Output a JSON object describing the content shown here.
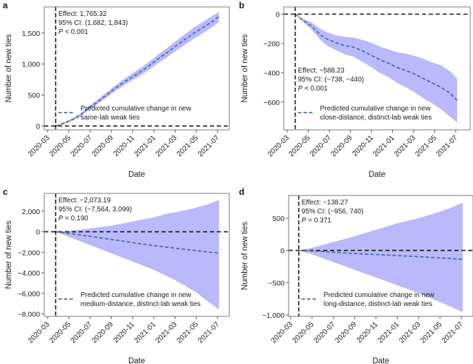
{
  "chart_data": [
    {
      "panel": "a",
      "type": "area",
      "xlabel": "Date",
      "ylabel": "Number of new ties",
      "x_ticks": [
        "2020-03",
        "2020-05",
        "2020-07",
        "2020-09",
        "2020-11",
        "2021-01",
        "2021-03",
        "2021-05",
        "2021-07"
      ],
      "y_ticks": [
        0,
        500,
        1000,
        1500
      ],
      "y_tick_labels": [
        "0",
        "500",
        "1,000",
        "1,500"
      ],
      "ylim": [
        -40,
        1900
      ],
      "intervention_date": "2020-03-24",
      "reference_line": 0,
      "annotation": {
        "effect": "Effect: 1,765.32",
        "ci": "95% CI: (1,682, 1,843)",
        "p_label": "P",
        "p_value": " < 0.001"
      },
      "legend": {
        "line1": "Predicted cumulative change in new",
        "line2": "same-lab weak ties"
      },
      "series": {
        "x": [
          "2020-03-24",
          "2020-04-15",
          "2020-05-10",
          "2020-06-05",
          "2020-06-25",
          "2020-07-20",
          "2020-08-15",
          "2020-09-10",
          "2020-10-05",
          "2020-10-30",
          "2020-11-25",
          "2020-12-20",
          "2021-01-15",
          "2021-02-10",
          "2021-03-05",
          "2021-03-30",
          "2021-04-25",
          "2021-05-20",
          "2021-06-15",
          "2021-07-05"
        ],
        "estimate": [
          0,
          40,
          100,
          180,
          280,
          380,
          490,
          600,
          700,
          790,
          880,
          980,
          1090,
          1190,
          1300,
          1400,
          1500,
          1590,
          1680,
          1765
        ],
        "lower": [
          0,
          25,
          80,
          155,
          250,
          345,
          450,
          555,
          650,
          735,
          820,
          915,
          1020,
          1115,
          1220,
          1315,
          1410,
          1500,
          1590,
          1682
        ],
        "upper": [
          0,
          55,
          120,
          205,
          310,
          415,
          530,
          645,
          750,
          845,
          940,
          1045,
          1160,
          1265,
          1380,
          1485,
          1590,
          1680,
          1770,
          1843
        ]
      }
    },
    {
      "panel": "b",
      "type": "area",
      "xlabel": "Date",
      "ylabel": "Number of new ties",
      "x_ticks": [
        "2020-03",
        "2020-05",
        "2020-07",
        "2020-09",
        "2020-11",
        "2021-01",
        "2021-03",
        "2021-05",
        "2021-07"
      ],
      "y_ticks": [
        -600,
        -400,
        -200,
        0
      ],
      "y_tick_labels": [
        "−600",
        "−400",
        "−200",
        "0"
      ],
      "ylim": [
        -780,
        40
      ],
      "intervention_date": "2020-03-24",
      "reference_line": 0,
      "annotation": {
        "effect": "Effect: −588.23",
        "ci": "95% CI: (−738, −440)",
        "p_label": "P",
        "p_value": " < 0.001"
      },
      "legend": {
        "line1": "Predicted cumulative change in new",
        "line2": "close-distance, distinct-lab weak ties"
      },
      "series": {
        "x": [
          "2020-03-24",
          "2020-04-15",
          "2020-05-10",
          "2020-06-05",
          "2020-06-25",
          "2020-07-20",
          "2020-08-15",
          "2020-09-10",
          "2020-10-05",
          "2020-10-30",
          "2020-11-25",
          "2020-12-20",
          "2021-01-15",
          "2021-02-10",
          "2021-03-05",
          "2021-03-30",
          "2021-04-25",
          "2021-05-20",
          "2021-06-15",
          "2021-07-05"
        ],
        "estimate": [
          0,
          -40,
          -80,
          -140,
          -170,
          -195,
          -215,
          -225,
          -250,
          -280,
          -310,
          -335,
          -365,
          -385,
          -410,
          -440,
          -470,
          -500,
          -540,
          -588
        ],
        "lower": [
          0,
          -50,
          -105,
          -175,
          -215,
          -245,
          -275,
          -290,
          -325,
          -360,
          -400,
          -430,
          -470,
          -500,
          -535,
          -575,
          -610,
          -650,
          -700,
          -738
        ],
        "upper": [
          0,
          -30,
          -55,
          -100,
          -125,
          -145,
          -155,
          -160,
          -175,
          -195,
          -220,
          -240,
          -260,
          -270,
          -285,
          -305,
          -330,
          -350,
          -390,
          -440
        ]
      }
    },
    {
      "panel": "c",
      "type": "area",
      "xlabel": "Date",
      "ylabel": "Number of new ties",
      "x_ticks": [
        "2020-03",
        "2020-05",
        "2020-07",
        "2020-09",
        "2020-11",
        "2021-01",
        "2021-03",
        "2021-05",
        "2021-07"
      ],
      "y_ticks": [
        -8000,
        -6000,
        -4000,
        -2000,
        0,
        2000
      ],
      "y_tick_labels": [
        "−8,000",
        "−6,000",
        "−4,000",
        "−2,000",
        "0",
        "2,000"
      ],
      "ylim": [
        -8100,
        3600
      ],
      "intervention_date": "2020-03-24",
      "reference_line": 0,
      "annotation": {
        "effect": "Effect: −2,073.19",
        "ci": "95% CI: (−7,564, 3,099)",
        "p_label": "P",
        "p_value": " = 0.190"
      },
      "legend": {
        "line1": "Predicted cumulative change in new",
        "line2": "medium-distance, distinct-lab weak ties"
      },
      "series": {
        "x": [
          "2020-03-24",
          "2020-05-01",
          "2020-06-01",
          "2020-07-01",
          "2020-08-01",
          "2020-09-01",
          "2020-10-01",
          "2020-11-01",
          "2020-12-01",
          "2021-01-01",
          "2021-02-01",
          "2021-03-01",
          "2021-04-01",
          "2021-05-01",
          "2021-06-01",
          "2021-07-05"
        ],
        "estimate": [
          0,
          -150,
          -300,
          -450,
          -600,
          -750,
          -900,
          -1050,
          -1200,
          -1350,
          -1480,
          -1600,
          -1720,
          -1840,
          -1960,
          -2073
        ],
        "lower": [
          0,
          -500,
          -900,
          -1300,
          -1700,
          -2100,
          -2500,
          -2900,
          -3300,
          -3700,
          -4200,
          -4700,
          -5300,
          -5900,
          -6700,
          -7564
        ],
        "upper": [
          0,
          80,
          200,
          320,
          450,
          600,
          800,
          1000,
          1200,
          1400,
          1700,
          1900,
          2100,
          2350,
          2650,
          3099
        ]
      }
    },
    {
      "panel": "d",
      "type": "area",
      "xlabel": "Date",
      "ylabel": "Number of new ties",
      "x_ticks": [
        "2020-03",
        "2020-05",
        "2020-07",
        "2020-09",
        "2020-11",
        "2021-01",
        "2021-03",
        "2021-05",
        "2021-07"
      ],
      "y_ticks": [
        -1000,
        -500,
        0,
        500
      ],
      "y_tick_labels": [
        "−1,000",
        "−500",
        "0",
        "500"
      ],
      "ylim": [
        -1000,
        830
      ],
      "intervention_date": "2020-03-24",
      "reference_line": 0,
      "annotation": {
        "effect": "Effect: −138.27",
        "ci": "95% CI: (−956, 740)",
        "p_label": "P",
        "p_value": " = 0.371"
      },
      "legend": {
        "line1": "Predicted cumulative change in new",
        "line2": "long-distance, distinct-lab weak ties"
      },
      "series": {
        "x": [
          "2020-03-24",
          "2020-05-01",
          "2020-06-01",
          "2020-07-01",
          "2020-08-01",
          "2020-09-01",
          "2020-10-01",
          "2020-11-01",
          "2020-12-01",
          "2021-01-01",
          "2021-02-01",
          "2021-03-01",
          "2021-04-01",
          "2021-05-01",
          "2021-06-01",
          "2021-07-05"
        ],
        "estimate": [
          0,
          -8,
          -18,
          -28,
          -38,
          -48,
          -56,
          -64,
          -72,
          -80,
          -88,
          -96,
          -106,
          -116,
          -126,
          -138
        ],
        "lower": [
          0,
          -60,
          -120,
          -180,
          -240,
          -300,
          -360,
          -420,
          -480,
          -540,
          -600,
          -660,
          -730,
          -800,
          -870,
          -956
        ],
        "upper": [
          0,
          40,
          85,
          130,
          175,
          220,
          270,
          320,
          370,
          420,
          460,
          500,
          550,
          600,
          660,
          740
        ]
      }
    }
  ]
}
